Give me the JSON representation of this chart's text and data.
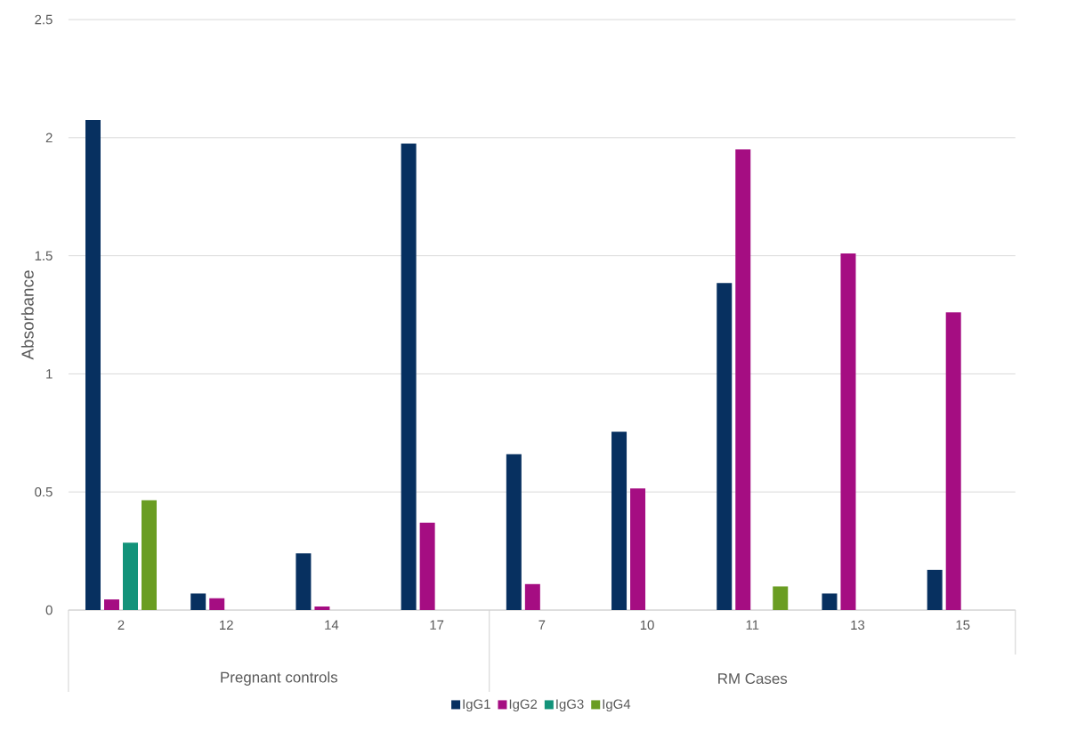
{
  "chart_data": {
    "type": "bar",
    "ylabel": "Absorbance",
    "categories": [
      "2",
      "12",
      "14",
      "17",
      "7",
      "10",
      "11",
      "13",
      "15"
    ],
    "series": [
      {
        "name": "IgG1",
        "color": "#073060",
        "values": [
          2.075,
          0.07,
          0.24,
          1.975,
          0.66,
          0.755,
          1.385,
          0.07,
          0.17
        ]
      },
      {
        "name": "IgG2",
        "color": "#a50d82",
        "values": [
          0.045,
          0.05,
          0.015,
          0.37,
          0.11,
          0.515,
          1.95,
          1.51,
          1.26
        ]
      },
      {
        "name": "IgG3",
        "color": "#13937a",
        "values": [
          0.285,
          null,
          null,
          null,
          null,
          null,
          null,
          null,
          null
        ]
      },
      {
        "name": "IgG4",
        "color": "#6a9d22",
        "values": [
          0.465,
          null,
          null,
          null,
          null,
          null,
          0.1,
          null,
          null
        ]
      }
    ],
    "ylim": [
      0,
      2.5
    ],
    "yticks": [
      0,
      0.5,
      1,
      1.5,
      2,
      2.5
    ],
    "grid": "y",
    "legend": "bottom",
    "annotations": [
      "Pregnant controls",
      "RM Cases"
    ]
  }
}
